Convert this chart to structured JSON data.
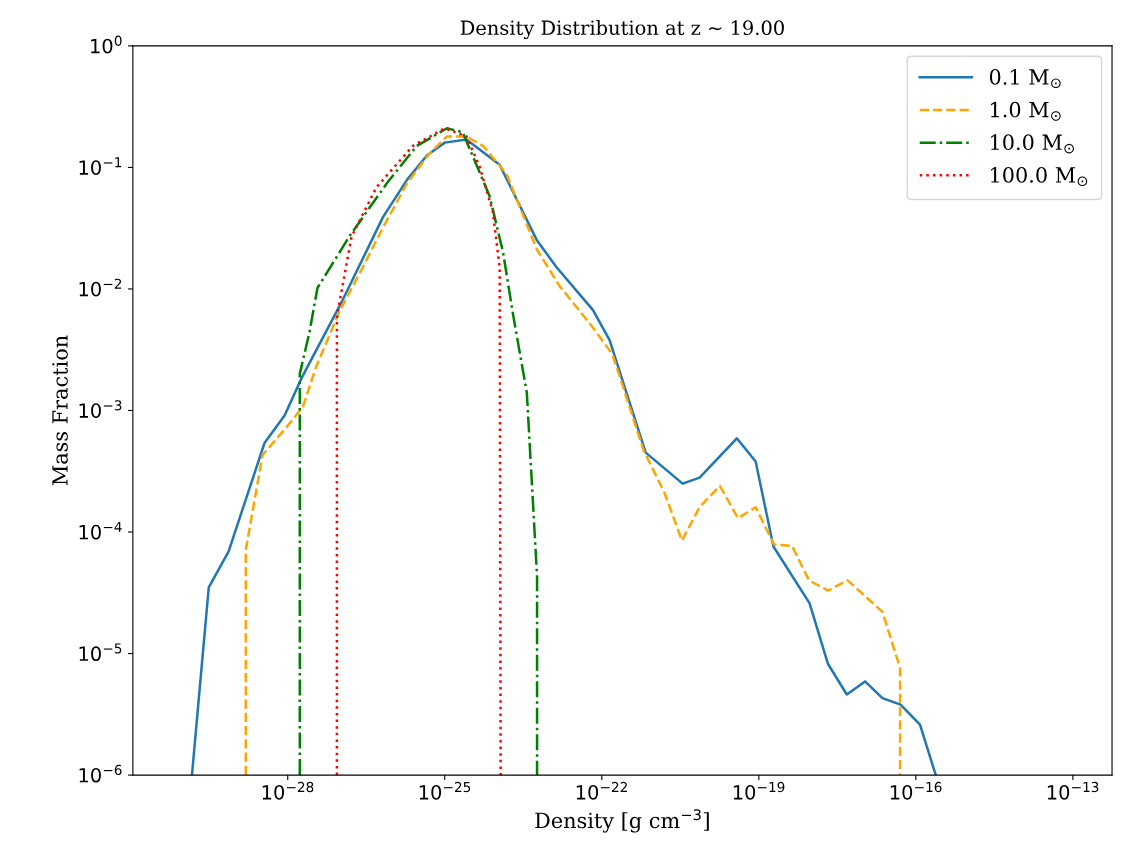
{
  "chart_data": {
    "type": "line",
    "title": "Density Distribution at z ~ 19.00",
    "xlabel": "Density [g cm$^{−3}$]",
    "ylabel": "Mass Fraction",
    "log": "xy",
    "grid": false,
    "legend": "top right",
    "xlim": [
      1.1e-31,
      5.6e-13
    ],
    "ylim": [
      1e-06,
      1
    ],
    "xticks": [
      {
        "value": 1e-28,
        "label": "10$^{−28}$"
      },
      {
        "value": 1e-25,
        "label": "10$^{−25}$"
      },
      {
        "value": 1e-22,
        "label": "10$^{−22}$"
      },
      {
        "value": 1e-19,
        "label": "10$^{−19}$"
      },
      {
        "value": 1e-16,
        "label": "10$^{−16}$"
      },
      {
        "value": 1e-13,
        "label": "10$^{−13}$"
      }
    ],
    "yticks": [
      {
        "value": 1e-06,
        "label": "10$^{−6}$"
      },
      {
        "value": 1e-05,
        "label": "10$^{−5}$"
      },
      {
        "value": 0.0001,
        "label": "10$^{−4}$"
      },
      {
        "value": 0.001,
        "label": "10$^{−3}$"
      },
      {
        "value": 0.01,
        "label": "10$^{−2}$"
      },
      {
        "value": 0.1,
        "label": "10$^{−1}$"
      },
      {
        "value": 1,
        "label": "10$^{0}$"
      }
    ],
    "series": [
      {
        "name": "0.1 M$_{⊙}$",
        "color": "#1f77b4",
        "line_style": "solid",
        "x": [
          1.48e-30,
          3.1e-30,
          7.4e-30,
          3.6e-29,
          8.7e-29,
          1.9e-28,
          1.12e-27,
          6.6e-27,
          1.9e-26,
          4.6e-26,
          1e-25,
          2.6e-25,
          1.12e-24,
          5.8e-24,
          1.38e-23,
          6.8e-23,
          1.41e-22,
          6.9e-22,
          3.5e-21,
          7.4e-21,
          3.8e-20,
          8.7e-20,
          1.9e-19,
          9.3e-19,
          2.1e-18,
          4.8e-18,
          1.07e-17,
          2.3e-17,
          5.1e-17,
          1.2e-16,
          2.4e-16
        ],
        "values": [
          1e-06,
          3.5e-05,
          6.9e-05,
          0.00054,
          0.00091,
          0.0019,
          0.0081,
          0.039,
          0.079,
          0.126,
          0.16,
          0.17,
          0.105,
          0.025,
          0.015,
          0.0067,
          0.0038,
          0.00045,
          0.00025,
          0.00028,
          0.00059,
          0.00038,
          7.6e-05,
          2.6e-05,
          8.2e-06,
          4.6e-06,
          5.9e-06,
          4.3e-06,
          3.8e-06,
          2.6e-06,
          1e-06
        ]
      },
      {
        "name": "1.0 M$_{⊙}$",
        "color": "#ffa500",
        "line_style": "dashed",
        "x": [
          1.58e-29,
          1.58e-29,
          3.3e-29,
          9.5e-29,
          1.95e-28,
          3.5e-28,
          1e-27,
          2.7e-27,
          6.6e-27,
          1.9e-26,
          5.1e-26,
          1.1e-25,
          2.6e-25,
          5.4e-25,
          1.5e-24,
          5.8e-24,
          1.58e-23,
          5.9e-23,
          1.6e-22,
          6.3e-22,
          1.58e-21,
          3.4e-21,
          7.4e-21,
          1.8e-20,
          4e-20,
          8.7e-20,
          1.95e-19,
          4.3e-19,
          9.1e-19,
          2.1e-18,
          5e-18,
          2.3e-17,
          5e-17,
          5e-17
        ],
        "values": [
          1e-06,
          7.1e-05,
          0.00043,
          0.00073,
          0.00107,
          0.0023,
          0.0067,
          0.015,
          0.032,
          0.074,
          0.13,
          0.18,
          0.18,
          0.15,
          0.089,
          0.021,
          0.0105,
          0.0052,
          0.0029,
          0.00047,
          0.00021,
          8.5e-05,
          0.00016,
          0.00024,
          0.00013,
          0.00016,
          7.9e-05,
          7.7e-05,
          4e-05,
          3.3e-05,
          4e-05,
          2.2e-05,
          7.6e-06,
          1e-06
        ]
      },
      {
        "name": "10.0 M$_{⊙}$",
        "color": "#008000",
        "line_style": "dashdot",
        "x": [
          1.7e-28,
          1.7e-28,
          2.6e-28,
          3.7e-28,
          1.5e-27,
          7.8e-27,
          2.9e-26,
          1.1e-25,
          2.2e-25,
          7.2e-25,
          1.3e-24,
          2e-24,
          3.7e-24,
          5.8e-24,
          5.8e-24
        ],
        "values": [
          1e-06,
          0.002,
          0.0044,
          0.0102,
          0.027,
          0.074,
          0.15,
          0.21,
          0.195,
          0.058,
          0.02,
          0.0063,
          0.0014,
          4.3e-05,
          1e-06
        ]
      },
      {
        "name": "100.0 M$_{⊙}$",
        "color": "#ff0000",
        "line_style": "dotted",
        "x": [
          8.7e-28,
          8.7e-28,
          1.66e-27,
          5e-27,
          2.45e-26,
          1e-25,
          2.6e-25,
          4.7e-25,
          8.3e-25,
          1.12e-24,
          1.17e-24
        ],
        "values": [
          1e-06,
          0.0059,
          0.027,
          0.069,
          0.15,
          0.21,
          0.18,
          0.1,
          0.043,
          0.015,
          1e-06
        ]
      }
    ]
  }
}
